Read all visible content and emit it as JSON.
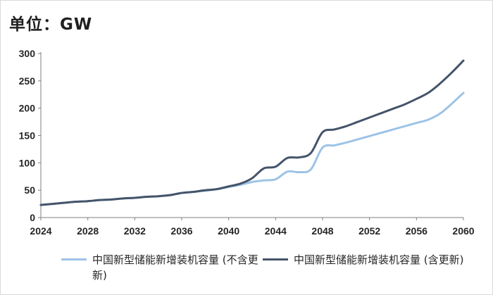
{
  "unit_label": "单位：GW",
  "colors": {
    "excl": "#9dc3e6",
    "incl": "#44546a",
    "axis": "#7f7f7f",
    "tick_text": "#262626"
  },
  "chart_data": {
    "type": "line",
    "title": "",
    "xlabel": "",
    "ylabel": "单位：GW",
    "xlim": [
      2024,
      2060
    ],
    "ylim": [
      0,
      300
    ],
    "x_ticks": [
      "2024",
      "2028",
      "2032",
      "2036",
      "2040",
      "2044",
      "2048",
      "2052",
      "2056",
      "2060"
    ],
    "y_ticks": [
      "0",
      "50",
      "100",
      "150",
      "200",
      "250",
      "300"
    ],
    "grid": false,
    "legend_position": "bottom",
    "x": [
      2024,
      2025,
      2026,
      2027,
      2028,
      2029,
      2030,
      2031,
      2032,
      2033,
      2034,
      2035,
      2036,
      2037,
      2038,
      2039,
      2040,
      2041,
      2042,
      2043,
      2044,
      2045,
      2046,
      2047,
      2048,
      2049,
      2050,
      2051,
      2052,
      2053,
      2054,
      2055,
      2056,
      2057,
      2058,
      2059,
      2060
    ],
    "series": [
      {
        "name": "中国新型储能新增装机容量(不含更新)",
        "color": "#9dc3e6",
        "values": [
          23,
          25,
          27,
          29,
          30,
          32,
          33,
          35,
          36,
          38,
          39,
          41,
          45,
          47,
          49,
          52,
          56,
          60,
          65,
          68,
          70,
          84,
          83,
          88,
          128,
          132,
          137,
          143,
          149,
          155,
          161,
          167,
          173,
          179,
          190,
          208,
          228
        ]
      },
      {
        "name": "中国新型储能新增装机容量(含更新)",
        "color": "#44546a",
        "values": [
          23,
          25,
          27,
          29,
          30,
          32,
          33,
          35,
          36,
          38,
          39,
          41,
          45,
          47,
          50,
          52,
          57,
          62,
          72,
          90,
          93,
          109,
          110,
          118,
          156,
          161,
          167,
          175,
          183,
          191,
          199,
          207,
          217,
          228,
          245,
          265,
          287
        ]
      }
    ]
  },
  "legend": {
    "items": [
      {
        "label": "中国新型储能新增装机容量 (不含更新)"
      },
      {
        "label": "中国新型储能新增装机容量 (含更新)"
      }
    ]
  }
}
